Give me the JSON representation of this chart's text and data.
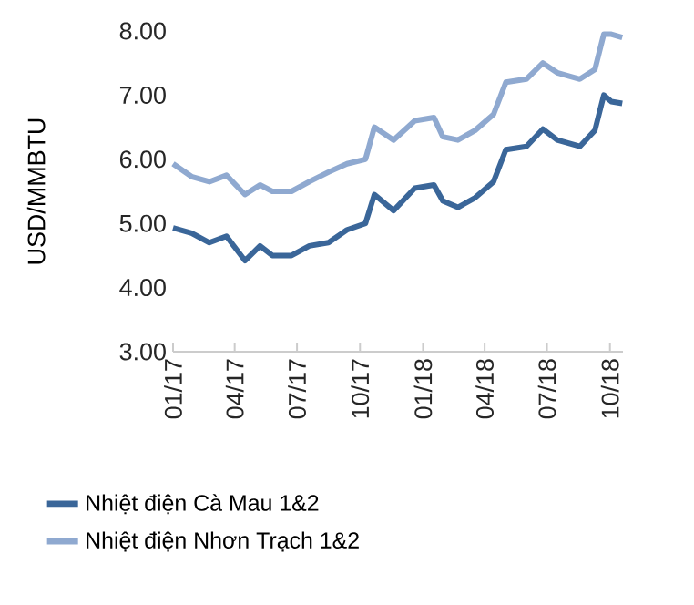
{
  "chart_data": {
    "type": "line",
    "ylabel": "USD/MMBTU",
    "x": [
      "2017-01-01",
      "2017-01-28",
      "2017-02-23",
      "2017-03-20",
      "2017-04-16",
      "2017-05-08",
      "2017-05-26",
      "2017-06-23",
      "2017-07-19",
      "2017-08-16",
      "2017-09-12",
      "2017-10-09",
      "2017-10-22",
      "2017-11-19",
      "2017-12-20",
      "2018-01-17",
      "2018-01-30",
      "2018-02-21",
      "2018-03-18",
      "2018-04-14",
      "2018-05-02",
      "2018-06-01",
      "2018-06-25",
      "2018-07-16",
      "2018-08-18",
      "2018-09-09",
      "2018-09-22",
      "2018-10-03",
      "2018-10-19"
    ],
    "series": [
      {
        "name": "Nhiệt điện Cà Mau 1&2",
        "color": "#3a6699",
        "values": [
          4.93,
          4.85,
          4.7,
          4.8,
          4.42,
          4.65,
          4.5,
          4.5,
          4.65,
          4.7,
          4.9,
          5.0,
          5.45,
          5.2,
          5.55,
          5.6,
          5.35,
          5.25,
          5.4,
          5.65,
          6.15,
          6.2,
          6.47,
          6.3,
          6.2,
          6.45,
          7.0,
          6.9,
          6.87
        ]
      },
      {
        "name": "Nhiệt điện Nhơn Trạch 1&2",
        "color": "#8fa9d0",
        "values": [
          5.93,
          5.73,
          5.65,
          5.75,
          5.45,
          5.6,
          5.5,
          5.5,
          5.65,
          5.8,
          5.93,
          6.0,
          6.5,
          6.3,
          6.6,
          6.65,
          6.35,
          6.3,
          6.45,
          6.7,
          7.2,
          7.25,
          7.5,
          7.35,
          7.25,
          7.4,
          7.95,
          7.95,
          7.9
        ]
      }
    ],
    "xlim": [
      "2017-01-01",
      "2018-10-20"
    ],
    "xticks": [
      {
        "value": "2017-01-01",
        "label": "01/17"
      },
      {
        "value": "2017-04-01",
        "label": "04/17"
      },
      {
        "value": "2017-07-01",
        "label": "07/17"
      },
      {
        "value": "2017-10-01",
        "label": "10/17"
      },
      {
        "value": "2018-01-01",
        "label": "01/18"
      },
      {
        "value": "2018-04-01",
        "label": "04/18"
      },
      {
        "value": "2018-07-01",
        "label": "07/18"
      },
      {
        "value": "2018-10-01",
        "label": "10/18"
      }
    ],
    "ylim": [
      3,
      8
    ],
    "yticks": [
      {
        "value": 3,
        "label": "3.00"
      },
      {
        "value": 4,
        "label": "4.00"
      },
      {
        "value": 5,
        "label": "5.00"
      },
      {
        "value": 6,
        "label": "6.00"
      },
      {
        "value": 7,
        "label": "7.00"
      },
      {
        "value": 8,
        "label": "8.00"
      }
    ],
    "grid": false,
    "legend": "bottom",
    "marker": "none",
    "line_style": "solid"
  }
}
